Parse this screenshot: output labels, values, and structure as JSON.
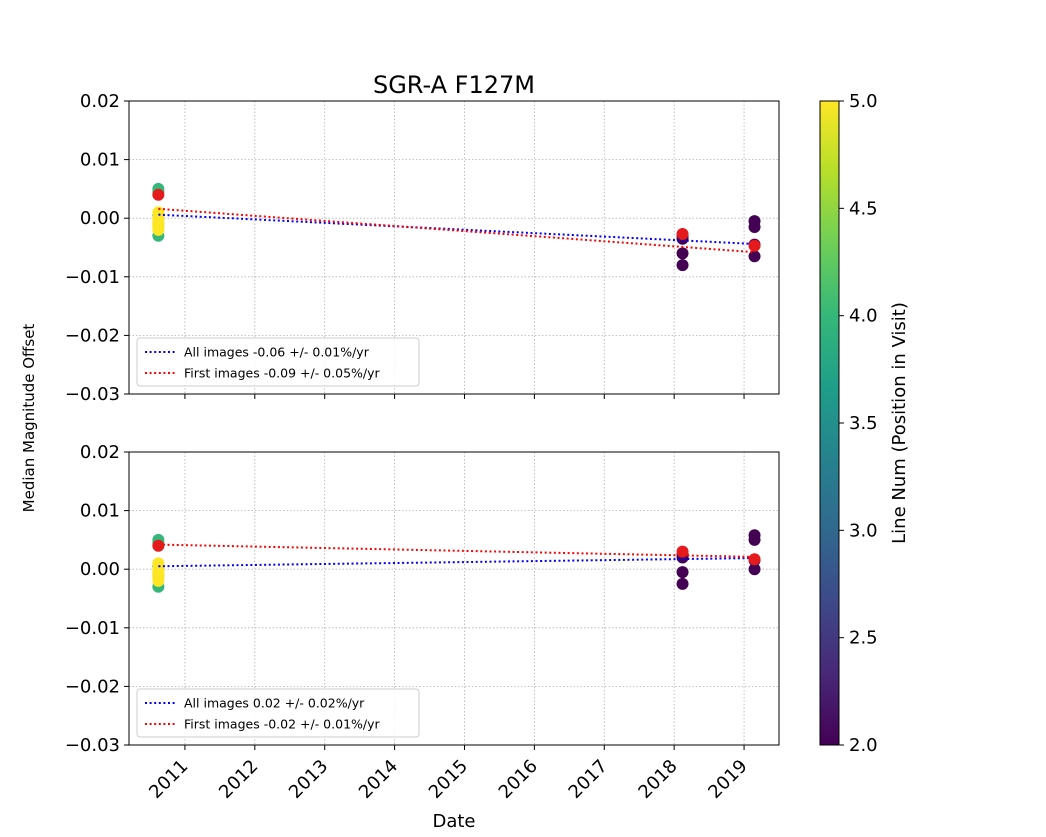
{
  "figure": {
    "title": "SGR-A F127M",
    "ylabel": "Median Magnitude Offset",
    "xlabel": "Date"
  },
  "colors": {
    "all_fit": "#0000ff",
    "first_fit": "#ff0000",
    "first_point": "#e41a1c",
    "grid": "#b0b0b0",
    "viridis_stops": [
      "#440154",
      "#482878",
      "#3e4989",
      "#31688e",
      "#26828e",
      "#1f9e89",
      "#35b779",
      "#6ece58",
      "#b5de2b",
      "#fde725"
    ]
  },
  "colorbar": {
    "label": "Line Num (Position in Visit)",
    "range": [
      2.0,
      5.0
    ],
    "ticks": [
      2.0,
      2.5,
      3.0,
      3.5,
      4.0,
      4.5,
      5.0
    ],
    "tick_labels": [
      "2.0",
      "2.5",
      "3.0",
      "3.5",
      "4.0",
      "4.5",
      "5.0"
    ]
  },
  "chart_data": [
    {
      "type": "scatter",
      "panel": "top",
      "title": "SGR-A F127M",
      "xlabel": "",
      "ylabel": "Median Magnitude Offset",
      "xlim": [
        2010.2,
        2019.5
      ],
      "ylim": [
        -0.03,
        0.02
      ],
      "x_ticks": [
        2011,
        2012,
        2013,
        2014,
        2015,
        2016,
        2017,
        2018,
        2019
      ],
      "x_tick_labels": [
        "2011",
        "2012",
        "2013",
        "2014",
        "2015",
        "2016",
        "2017",
        "2018",
        "2019"
      ],
      "y_ticks": [
        0.02,
        0.01,
        0.0,
        -0.01,
        -0.02,
        -0.03
      ],
      "y_tick_labels": [
        "0.02",
        "0.01",
        "0.00",
        "−0.01",
        "−0.02",
        "−0.03"
      ],
      "grid": true,
      "legend_position": "lower-left",
      "points": [
        {
          "x": 2010.62,
          "y": 0.005,
          "line": 4
        },
        {
          "x": 2010.62,
          "y": 0.0045,
          "line": 4
        },
        {
          "x": 2010.62,
          "y": 0.0005,
          "line": 4
        },
        {
          "x": 2010.62,
          "y": -0.001,
          "line": 4
        },
        {
          "x": 2010.62,
          "y": -0.003,
          "line": 4
        },
        {
          "x": 2010.62,
          "y": 0.001,
          "line": 5
        },
        {
          "x": 2010.62,
          "y": 0.0,
          "line": 5
        },
        {
          "x": 2010.62,
          "y": -0.0005,
          "line": 5
        },
        {
          "x": 2010.62,
          "y": -0.001,
          "line": 5
        },
        {
          "x": 2010.62,
          "y": -0.0015,
          "line": 5
        },
        {
          "x": 2010.62,
          "y": -0.002,
          "line": 5
        },
        {
          "x": 2018.12,
          "y": -0.003,
          "line": 2
        },
        {
          "x": 2018.12,
          "y": -0.0035,
          "line": 2
        },
        {
          "x": 2018.12,
          "y": -0.006,
          "line": 2
        },
        {
          "x": 2018.12,
          "y": -0.008,
          "line": 2
        },
        {
          "x": 2019.15,
          "y": -0.0005,
          "line": 2
        },
        {
          "x": 2019.15,
          "y": -0.0015,
          "line": 2
        },
        {
          "x": 2019.15,
          "y": -0.0045,
          "line": 2
        },
        {
          "x": 2019.15,
          "y": -0.0065,
          "line": 2
        }
      ],
      "first_points": [
        {
          "x": 2010.62,
          "y": 0.004
        },
        {
          "x": 2018.12,
          "y": -0.0027
        },
        {
          "x": 2019.15,
          "y": -0.0047
        }
      ],
      "series": [
        {
          "name": "All images -0.06 +/- 0.01%/yr",
          "color": "#0000ff",
          "style": "dotted",
          "x": [
            2010.62,
            2019.15
          ],
          "y": [
            0.0006,
            -0.0044
          ]
        },
        {
          "name": "First images -0.09 +/- 0.05%/yr",
          "color": "#ff0000",
          "style": "dotted",
          "x": [
            2010.62,
            2019.15
          ],
          "y": [
            0.0016,
            -0.0058
          ]
        }
      ]
    },
    {
      "type": "scatter",
      "panel": "bottom",
      "title": "",
      "xlabel": "Date",
      "ylabel": "Median Magnitude Offset",
      "xlim": [
        2010.2,
        2019.5
      ],
      "ylim": [
        -0.03,
        0.02
      ],
      "x_ticks": [
        2011,
        2012,
        2013,
        2014,
        2015,
        2016,
        2017,
        2018,
        2019
      ],
      "x_tick_labels": [
        "2011",
        "2012",
        "2013",
        "2014",
        "2015",
        "2016",
        "2017",
        "2018",
        "2019"
      ],
      "y_ticks": [
        0.02,
        0.01,
        0.0,
        -0.01,
        -0.02,
        -0.03
      ],
      "y_tick_labels": [
        "0.02",
        "0.01",
        "0.00",
        "−0.01",
        "−0.02",
        "−0.03"
      ],
      "grid": true,
      "legend_position": "lower-left",
      "points": [
        {
          "x": 2010.62,
          "y": 0.005,
          "line": 4
        },
        {
          "x": 2010.62,
          "y": 0.0045,
          "line": 4
        },
        {
          "x": 2010.62,
          "y": 0.0005,
          "line": 4
        },
        {
          "x": 2010.62,
          "y": -0.001,
          "line": 4
        },
        {
          "x": 2010.62,
          "y": -0.003,
          "line": 4
        },
        {
          "x": 2010.62,
          "y": 0.001,
          "line": 5
        },
        {
          "x": 2010.62,
          "y": 0.0,
          "line": 5
        },
        {
          "x": 2010.62,
          "y": -0.0005,
          "line": 5
        },
        {
          "x": 2010.62,
          "y": -0.001,
          "line": 5
        },
        {
          "x": 2010.62,
          "y": -0.0015,
          "line": 5
        },
        {
          "x": 2010.62,
          "y": -0.002,
          "line": 5
        },
        {
          "x": 2018.12,
          "y": 0.0025,
          "line": 2
        },
        {
          "x": 2018.12,
          "y": 0.002,
          "line": 2
        },
        {
          "x": 2018.12,
          "y": -0.0005,
          "line": 2
        },
        {
          "x": 2018.12,
          "y": -0.0025,
          "line": 2
        },
        {
          "x": 2019.15,
          "y": 0.0058,
          "line": 2
        },
        {
          "x": 2019.15,
          "y": 0.005,
          "line": 2
        },
        {
          "x": 2019.15,
          "y": 0.0015,
          "line": 2
        },
        {
          "x": 2019.15,
          "y": 0.0,
          "line": 2
        }
      ],
      "first_points": [
        {
          "x": 2010.62,
          "y": 0.004
        },
        {
          "x": 2018.12,
          "y": 0.003
        },
        {
          "x": 2019.15,
          "y": 0.0017
        }
      ],
      "series": [
        {
          "name": "All images 0.02 +/- 0.02%/yr",
          "color": "#0000ff",
          "style": "dotted",
          "x": [
            2010.62,
            2019.15
          ],
          "y": [
            0.0005,
            0.0019
          ]
        },
        {
          "name": "First images -0.02 +/- 0.01%/yr",
          "color": "#ff0000",
          "style": "dotted",
          "x": [
            2010.62,
            2019.15
          ],
          "y": [
            0.0042,
            0.0021
          ]
        }
      ]
    }
  ]
}
